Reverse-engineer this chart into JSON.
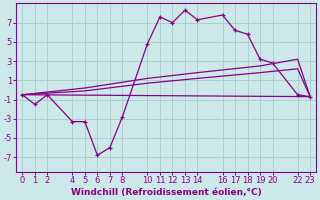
{
  "background_color": "#cce8e8",
  "grid_color": "#aacece",
  "line_color": "#880088",
  "xlabel": "Windchill (Refroidissement éolien,°C)",
  "xlabel_fontsize": 6.5,
  "tick_fontsize": 6,
  "xlim": [
    -0.5,
    23.5
  ],
  "ylim": [
    -8.5,
    9.0
  ],
  "yticks": [
    -7,
    -5,
    -3,
    -1,
    1,
    3,
    5,
    7
  ],
  "xticks": [
    0,
    1,
    2,
    4,
    5,
    6,
    7,
    8,
    10,
    11,
    12,
    13,
    14,
    16,
    17,
    18,
    19,
    20,
    22,
    23
  ],
  "main_x": [
    0,
    1,
    2,
    4,
    5,
    6,
    7,
    8,
    10,
    11,
    12,
    13,
    14,
    16,
    17,
    18,
    19,
    20,
    22,
    23
  ],
  "main_y": [
    -0.5,
    -1.5,
    -0.5,
    -3.3,
    -3.3,
    -6.8,
    -6.0,
    -2.8,
    4.8,
    7.6,
    7.0,
    8.3,
    7.3,
    7.8,
    6.2,
    5.8,
    3.2,
    2.8,
    -0.5,
    -0.7
  ],
  "line1_x": [
    0,
    23
  ],
  "line1_y": [
    -0.5,
    -0.7
  ],
  "line2_x": [
    0,
    5,
    10,
    14,
    19,
    22,
    23
  ],
  "line2_y": [
    -0.5,
    -0.1,
    0.7,
    1.2,
    1.8,
    2.2,
    -0.7
  ],
  "line3_x": [
    0,
    5,
    10,
    14,
    19,
    22,
    23
  ],
  "line3_y": [
    -0.5,
    0.2,
    1.2,
    1.8,
    2.5,
    3.2,
    -0.7
  ]
}
